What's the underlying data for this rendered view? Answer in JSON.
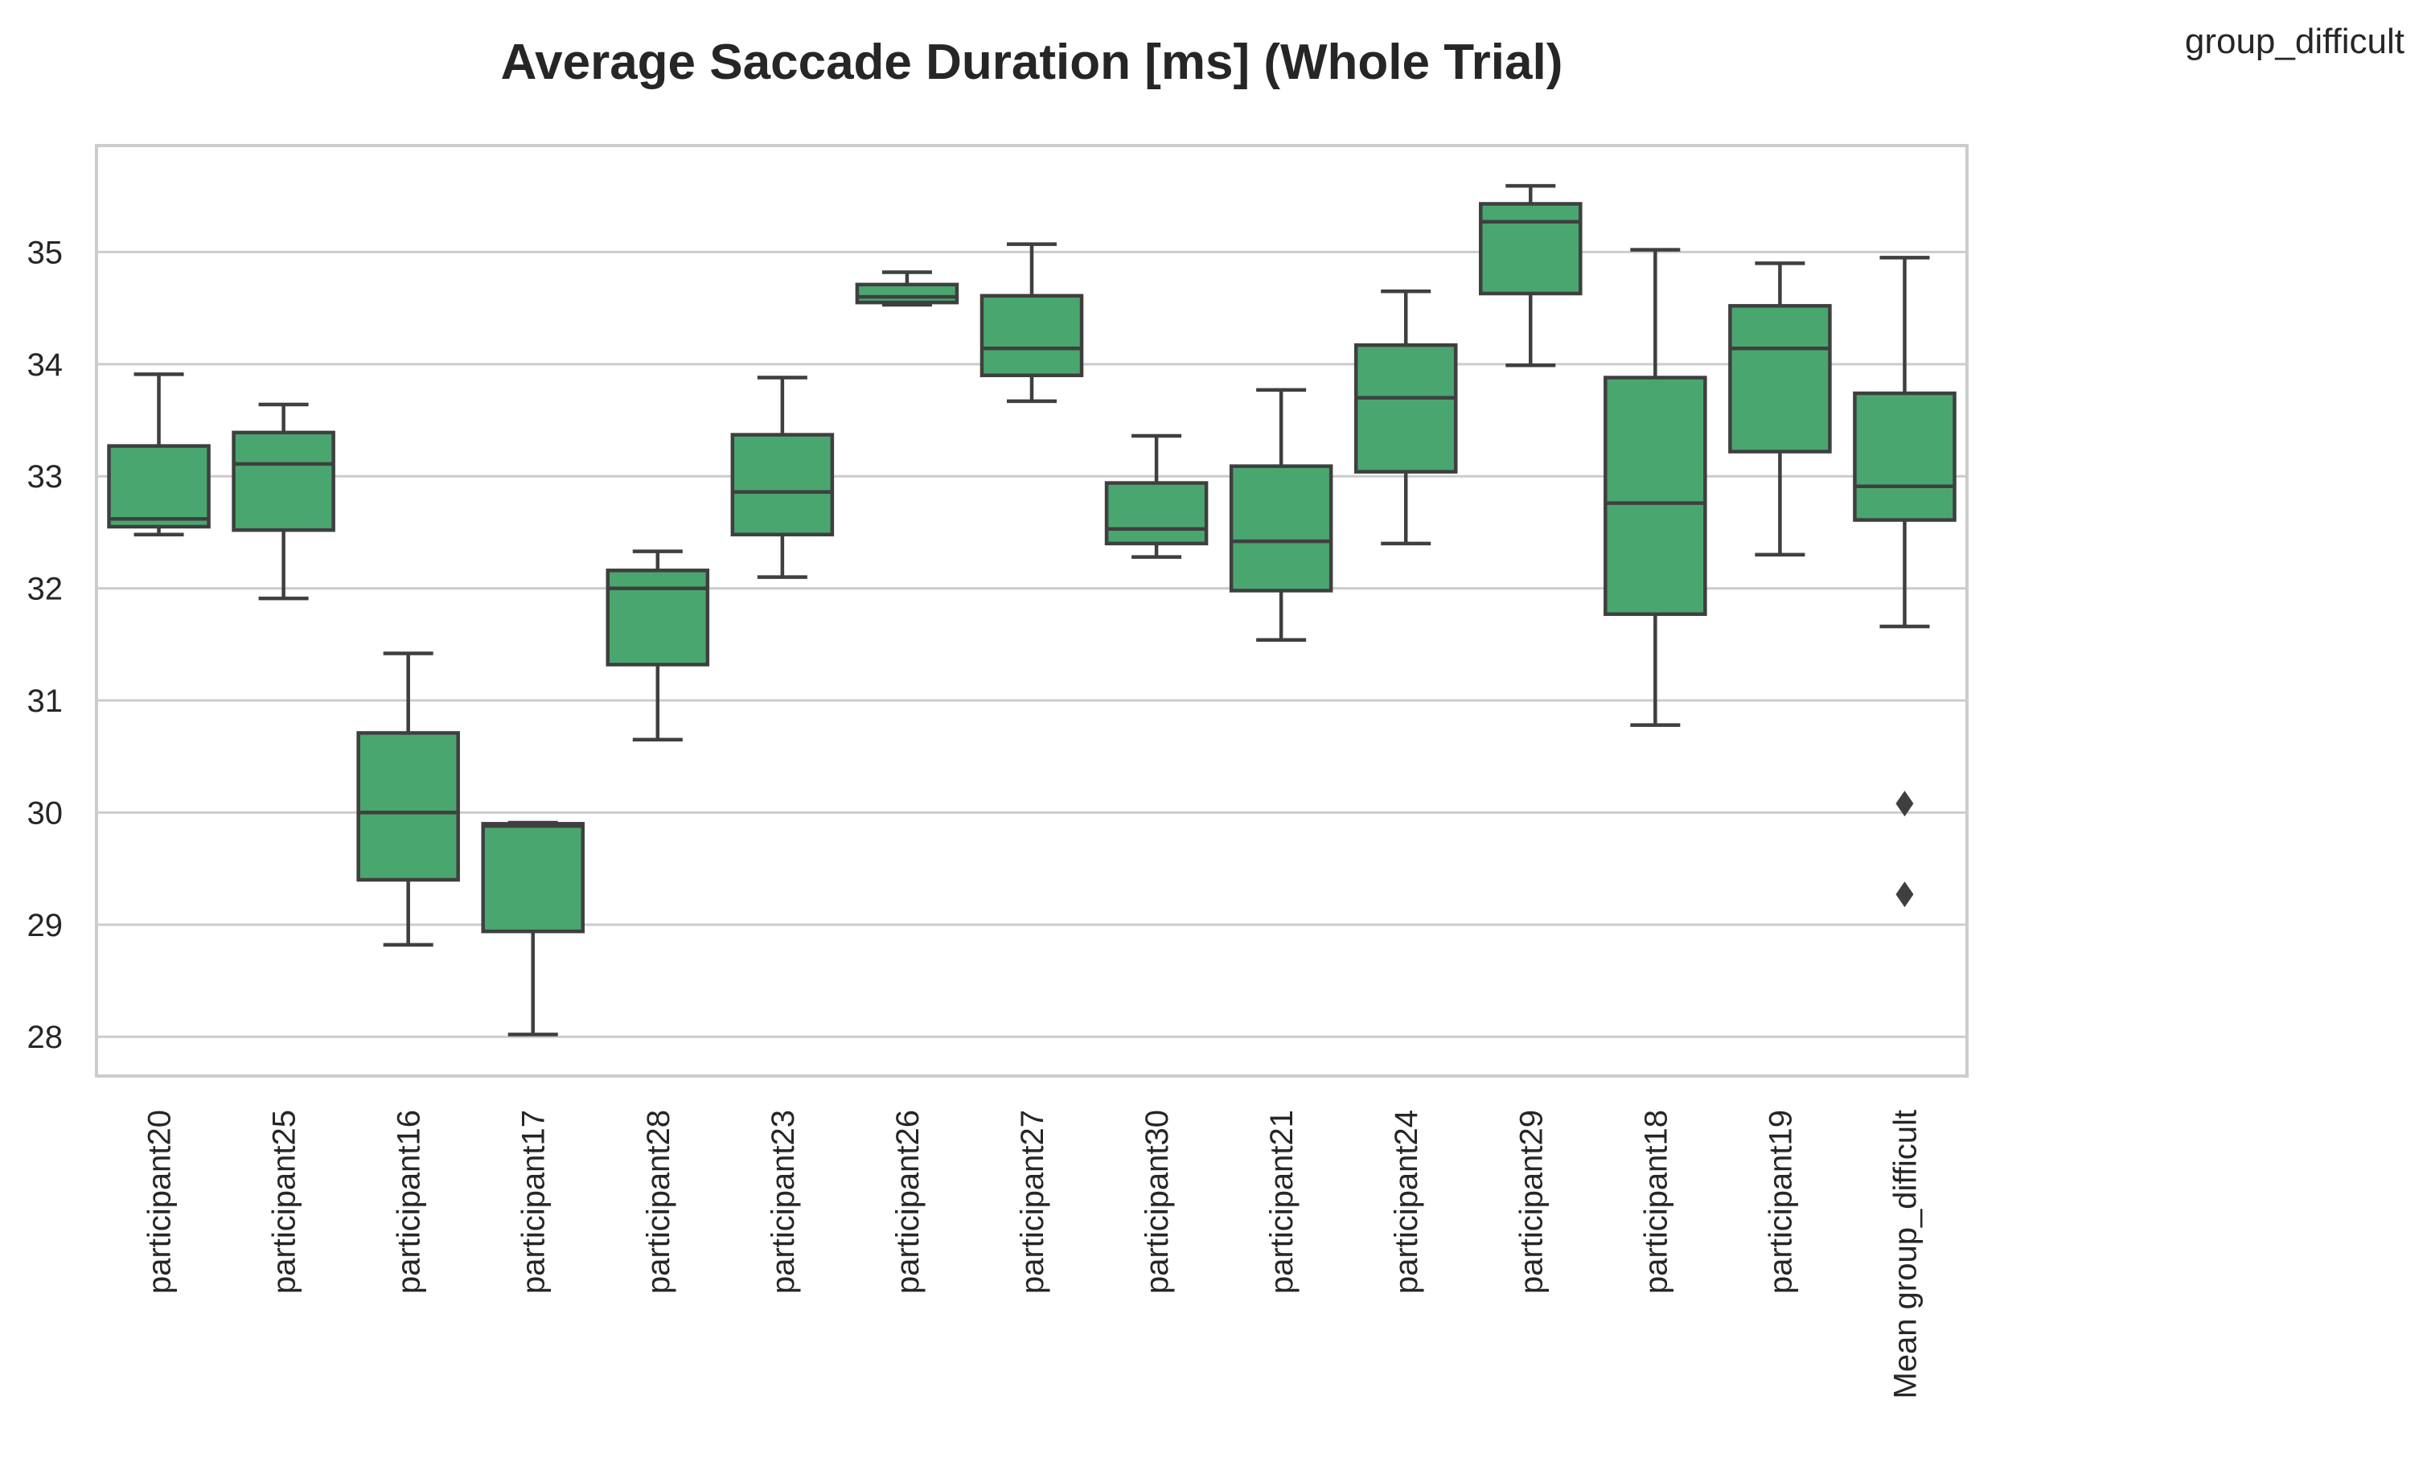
{
  "chart_data": {
    "type": "box",
    "title": "Average Saccade Duration [ms] (Whole Trial)",
    "legend_title": "group_difficult",
    "xlabel": "",
    "ylabel": "",
    "ylim": [
      27.65,
      35.95
    ],
    "yticks": [
      28,
      29,
      30,
      31,
      32,
      33,
      34,
      35
    ],
    "grid": "horizontal",
    "box_color": "#4aa66f",
    "line_color": "#3f3f3f",
    "categories": [
      "participant20",
      "participant25",
      "participant16",
      "participant17",
      "participant28",
      "participant23",
      "participant26",
      "participant27",
      "participant30",
      "participant21",
      "participant24",
      "participant29",
      "participant18",
      "participant19",
      "Mean group_difficult"
    ],
    "boxes": [
      {
        "whislo": 32.48,
        "q1": 32.55,
        "med": 32.62,
        "q3": 33.27,
        "whishi": 33.91,
        "fliers": []
      },
      {
        "whislo": 31.91,
        "q1": 32.52,
        "med": 33.11,
        "q3": 33.39,
        "whishi": 33.64,
        "fliers": []
      },
      {
        "whislo": 28.82,
        "q1": 29.4,
        "med": 30.0,
        "q3": 30.71,
        "whishi": 31.42,
        "fliers": []
      },
      {
        "whislo": 28.02,
        "q1": 28.94,
        "med": 29.88,
        "q3": 29.9,
        "whishi": 29.91,
        "fliers": []
      },
      {
        "whislo": 30.65,
        "q1": 31.32,
        "med": 32.0,
        "q3": 32.16,
        "whishi": 32.33,
        "fliers": []
      },
      {
        "whislo": 32.1,
        "q1": 32.48,
        "med": 32.86,
        "q3": 33.37,
        "whishi": 33.88,
        "fliers": []
      },
      {
        "whislo": 34.53,
        "q1": 34.55,
        "med": 34.6,
        "q3": 34.71,
        "whishi": 34.82,
        "fliers": []
      },
      {
        "whislo": 33.67,
        "q1": 33.9,
        "med": 34.14,
        "q3": 34.61,
        "whishi": 35.07,
        "fliers": []
      },
      {
        "whislo": 32.28,
        "q1": 32.4,
        "med": 32.53,
        "q3": 32.94,
        "whishi": 33.36,
        "fliers": []
      },
      {
        "whislo": 31.54,
        "q1": 31.98,
        "med": 32.42,
        "q3": 33.09,
        "whishi": 33.77,
        "fliers": []
      },
      {
        "whislo": 32.4,
        "q1": 33.04,
        "med": 33.7,
        "q3": 34.17,
        "whishi": 34.65,
        "fliers": []
      },
      {
        "whislo": 33.99,
        "q1": 34.63,
        "med": 35.27,
        "q3": 35.43,
        "whishi": 35.59,
        "fliers": []
      },
      {
        "whislo": 30.78,
        "q1": 31.77,
        "med": 32.76,
        "q3": 33.88,
        "whishi": 35.02,
        "fliers": []
      },
      {
        "whislo": 32.3,
        "q1": 33.22,
        "med": 34.14,
        "q3": 34.52,
        "whishi": 34.9,
        "fliers": []
      },
      {
        "whislo": 31.66,
        "q1": 32.61,
        "med": 32.91,
        "q3": 33.74,
        "whishi": 34.95,
        "fliers": [
          30.08,
          29.27
        ]
      }
    ]
  }
}
